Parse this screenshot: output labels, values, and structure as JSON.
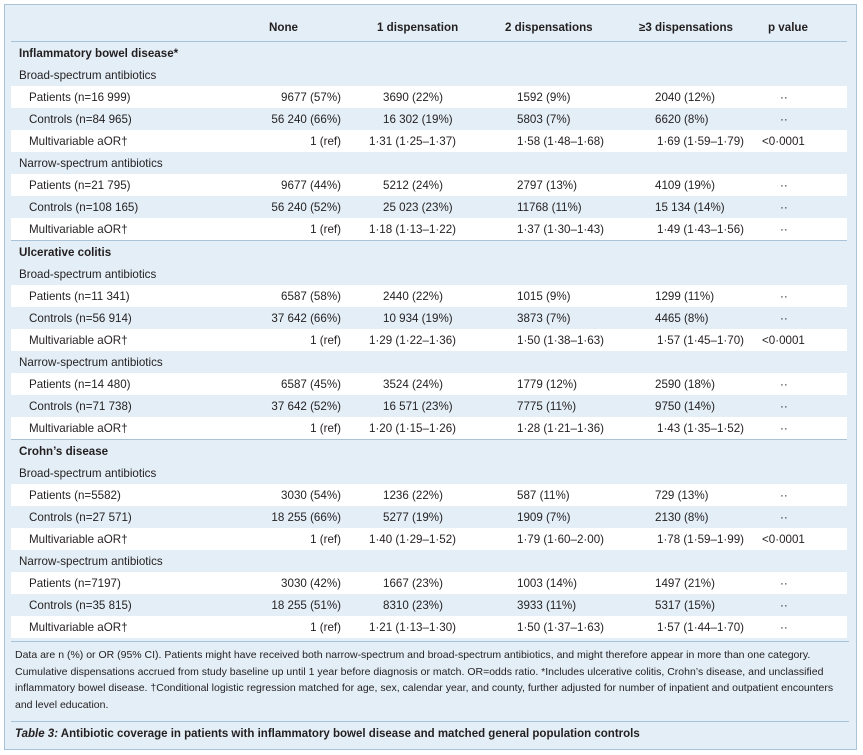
{
  "headers": [
    "",
    "None",
    "1 dispensation",
    "2 dispensations",
    "≥3 dispensations",
    "p value"
  ],
  "sections": [
    {
      "title": "Inflammatory bowel disease*",
      "groups": [
        {
          "name": "Broad-spectrum antibiotics",
          "rows": [
            {
              "label": "Patients (n=16 999)",
              "none": "9677 (57%)",
              "d1": "3690 (22%)",
              "d2": "1592 (9%)",
              "d3": "2040 (12%)",
              "p": "··"
            },
            {
              "label": "Controls (n=84 965)",
              "none": "56 240 (66%)",
              "d1": "16 302 (19%)",
              "d2": "5803 (7%)",
              "d3": "6620 (8%)",
              "p": "··"
            },
            {
              "label": "Multivariable aOR†",
              "none": "1 (ref)",
              "d1": "1·31 (1·25–1·37)",
              "d2": "1·58 (1·48–1·68)",
              "d3": "1·69 (1·59–1·79)",
              "p": "<0·0001"
            }
          ]
        },
        {
          "name": "Narrow-spectrum antibiotics",
          "rows": [
            {
              "label": "Patients (n=21 795)",
              "none": "9677 (44%)",
              "d1": "5212 (24%)",
              "d2": "2797 (13%)",
              "d3": "4109 (19%)",
              "p": "··"
            },
            {
              "label": "Controls (n=108 165)",
              "none": "56 240 (52%)",
              "d1": "25 023 (23%)",
              "d2": "11768 (11%)",
              "d3": "15 134 (14%)",
              "p": "··"
            },
            {
              "label": "Multivariable aOR†",
              "none": "1 (ref)",
              "d1": "1·18 (1·13–1·22)",
              "d2": "1·37 (1·30–1·43)",
              "d3": "1·49 (1·43–1·56)",
              "p": "··"
            }
          ]
        }
      ]
    },
    {
      "title": "Ulcerative colitis",
      "groups": [
        {
          "name": "Broad-spectrum antibiotics",
          "rows": [
            {
              "label": "Patients (n=11 341)",
              "none": "6587 (58%)",
              "d1": "2440 (22%)",
              "d2": "1015 (9%)",
              "d3": "1299 (11%)",
              "p": "··"
            },
            {
              "label": "Controls (n=56 914)",
              "none": "37 642 (66%)",
              "d1": "10 934 (19%)",
              "d2": "3873 (7%)",
              "d3": "4465 (8%)",
              "p": "··"
            },
            {
              "label": "Multivariable aOR†",
              "none": "1 (ref)",
              "d1": "1·29 (1·22–1·36)",
              "d2": "1·50 (1·38–1·63)",
              "d3": "1·57 (1·45–1·70)",
              "p": "<0·0001"
            }
          ]
        },
        {
          "name": "Narrow-spectrum antibiotics",
          "rows": [
            {
              "label": "Patients (n=14 480)",
              "none": "6587 (45%)",
              "d1": "3524 (24%)",
              "d2": "1779 (12%)",
              "d3": "2590 (18%)",
              "p": "··"
            },
            {
              "label": "Controls (n=71 738)",
              "none": "37 642 (52%)",
              "d1": "16 571 (23%)",
              "d2": "7775 (11%)",
              "d3": "9750 (14%)",
              "p": "··"
            },
            {
              "label": "Multivariable aOR†",
              "none": "1 (ref)",
              "d1": "1·20 (1·15–1·26)",
              "d2": "1·28 (1·21–1·36)",
              "d3": "1·43 (1·35–1·52)",
              "p": "··"
            }
          ]
        }
      ]
    },
    {
      "title": "Crohn’s disease",
      "groups": [
        {
          "name": "Broad-spectrum antibiotics",
          "rows": [
            {
              "label": "Patients (n=5582)",
              "none": "3030 (54%)",
              "d1": "1236 (22%)",
              "d2": "587 (11%)",
              "d3": "729 (13%)",
              "p": "··"
            },
            {
              "label": "Controls (n=27 571)",
              "none": "18 255 (66%)",
              "d1": "5277 (19%)",
              "d2": "1909 (7%)",
              "d3": "2130 (8%)",
              "p": "··"
            },
            {
              "label": "Multivariable aOR†",
              "none": "1 (ref)",
              "d1": "1·40 (1·29–1·52)",
              "d2": "1·79 (1·60–2·00)",
              "d3": "1·78 (1·59–1·99)",
              "p": "<0·0001"
            }
          ]
        },
        {
          "name": "Narrow-spectrum antibiotics",
          "rows": [
            {
              "label": "Patients (n=7197)",
              "none": "3030 (42%)",
              "d1": "1667 (23%)",
              "d2": "1003 (14%)",
              "d3": "1497 (21%)",
              "p": "··"
            },
            {
              "label": "Controls (n=35 815)",
              "none": "18 255 (51%)",
              "d1": "8310 (23%)",
              "d2": "3933 (11%)",
              "d3": "5317 (15%)",
              "p": "··"
            },
            {
              "label": "Multivariable aOR†",
              "none": "1 (ref)",
              "d1": "1·21 (1·13–1·30)",
              "d2": "1·50 (1·37–1·63)",
              "d3": "1·57 (1·44–1·70)",
              "p": "··"
            }
          ]
        }
      ]
    }
  ],
  "footnote": "Data are n (%) or OR (95% CI). Patients might have  received both narrow-spectrum and broad-spectrum antibiotics, and might therefore appear in more than one category. Cumulative dispensations accrued from study baseline up until 1 year before diagnosis or match. OR=odds ratio. *Includes ulcerative colitis, Crohn’s disease, and unclassified inflammatory bowel disease. †Conditional logistic regression matched for age, sex, calendar year, and county, further adjusted for number of inpatient and outpatient encounters and level education.",
  "caption_label": "Table 3:",
  "caption_text": " Antibiotic coverage in patients with inflammatory bowel disease and matched general population controls",
  "colors": {
    "panel": "#e3eef6",
    "rule": "#a9c4d9",
    "row_alt": "#ffffff"
  }
}
